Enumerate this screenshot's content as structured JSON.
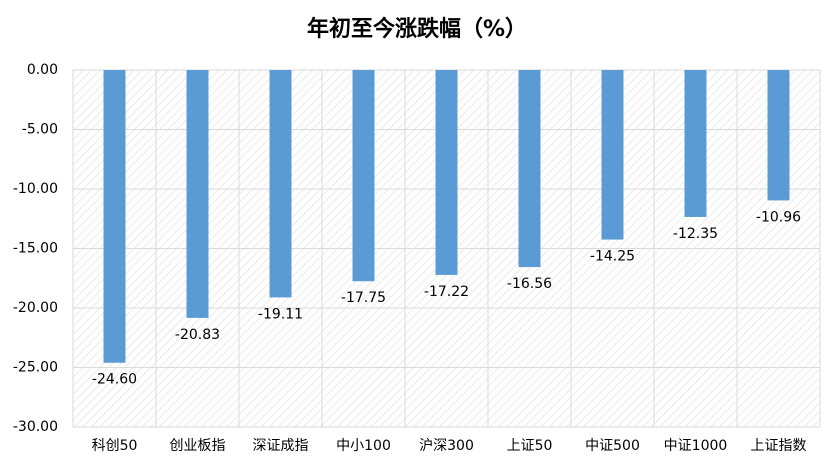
{
  "chart_data": {
    "type": "bar",
    "title": "年初至今涨跌幅（%）",
    "categories": [
      "科创50",
      "创业板指",
      "深证成指",
      "中小100",
      "沪深300",
      "上证50",
      "中证500",
      "中证1000",
      "上证指数"
    ],
    "values": [
      -24.6,
      -20.83,
      -19.11,
      -17.75,
      -17.22,
      -16.56,
      -14.25,
      -12.35,
      -10.96
    ],
    "value_labels": [
      "-24.60",
      "-20.83",
      "-19.11",
      "-17.75",
      "-17.22",
      "-16.56",
      "-14.25",
      "-12.35",
      "-10.96"
    ],
    "color": "#5b9bd5",
    "ylim": [
      -30,
      0
    ],
    "yticks": [
      {
        "value": 0,
        "label": "0.00"
      },
      {
        "value": -5,
        "label": "-5.00"
      },
      {
        "value": -10,
        "label": "-10.00"
      },
      {
        "value": -15,
        "label": "-15.00"
      },
      {
        "value": -20,
        "label": "-20.00"
      },
      {
        "value": -25,
        "label": "-25.00"
      },
      {
        "value": -30,
        "label": "-30.00"
      }
    ],
    "grid": true
  }
}
